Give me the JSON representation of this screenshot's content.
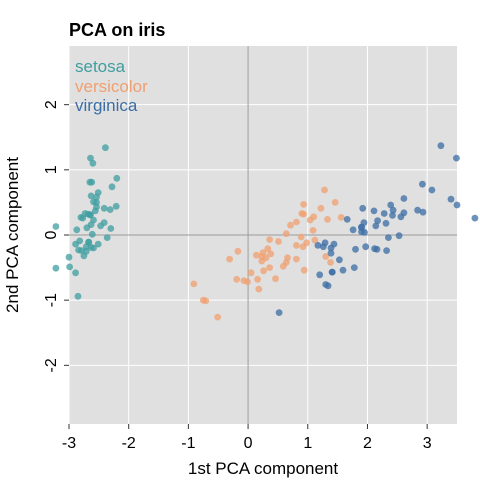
{
  "chart_data": {
    "type": "scatter",
    "title": "PCA on iris",
    "xlabel": "1st PCA component",
    "ylabel": "2nd PCA component",
    "xlim": [
      -3,
      3.5
    ],
    "ylim": [
      -2.9,
      2.9
    ],
    "x_ticks": [
      -3,
      -2,
      -1,
      0,
      1,
      2,
      3
    ],
    "y_ticks": [
      -2,
      -1,
      0,
      1,
      2
    ],
    "grid": true,
    "zero_lines": true,
    "legend_position": "top-left",
    "series": [
      {
        "name": "setosa",
        "color": "#3f9ea0",
        "points": [
          [
            -2.68,
            0.32
          ],
          [
            -2.71,
            -0.18
          ],
          [
            -2.89,
            -0.14
          ],
          [
            -2.75,
            -0.32
          ],
          [
            -2.73,
            0.33
          ],
          [
            -2.28,
            0.74
          ],
          [
            -2.82,
            -0.09
          ],
          [
            -2.63,
            0.16
          ],
          [
            -2.89,
            -0.58
          ],
          [
            -2.67,
            -0.11
          ],
          [
            -2.51,
            0.65
          ],
          [
            -2.61,
            0.01
          ],
          [
            -2.79,
            -0.24
          ],
          [
            -3.22,
            -0.51
          ],
          [
            -2.64,
            1.18
          ],
          [
            -2.39,
            1.34
          ],
          [
            -2.62,
            0.81
          ],
          [
            -2.65,
            0.31
          ],
          [
            -2.2,
            0.87
          ],
          [
            -2.59,
            0.51
          ],
          [
            -2.31,
            0.39
          ],
          [
            -2.54,
            0.43
          ],
          [
            -3.22,
            0.13
          ],
          [
            -2.3,
            0.1
          ],
          [
            -2.36,
            -0.04
          ],
          [
            -2.51,
            -0.14
          ],
          [
            -2.47,
            0.14
          ],
          [
            -2.56,
            0.37
          ],
          [
            -2.64,
            0.31
          ],
          [
            -2.63,
            -0.19
          ],
          [
            -2.59,
            -0.2
          ],
          [
            -2.41,
            0.41
          ],
          [
            -2.65,
            0.81
          ],
          [
            -2.6,
            1.1
          ],
          [
            -2.67,
            -0.11
          ],
          [
            -2.87,
            0.08
          ],
          [
            -2.63,
            0.6
          ],
          [
            -2.8,
            0.27
          ],
          [
            -2.99,
            -0.49
          ],
          [
            -2.59,
            0.23
          ],
          [
            -2.77,
            0.26
          ],
          [
            -2.85,
            -0.94
          ],
          [
            -3,
            -0.34
          ],
          [
            -2.41,
            0.19
          ],
          [
            -2.21,
            0.44
          ],
          [
            -2.71,
            -0.25
          ],
          [
            -2.54,
            0.5
          ],
          [
            -2.84,
            -0.23
          ],
          [
            -2.54,
            0.58
          ],
          [
            -2.7,
            0.11
          ]
        ]
      },
      {
        "name": "versicolor",
        "color": "#f0a070",
        "points": [
          [
            1.28,
            0.69
          ],
          [
            0.93,
            0.32
          ],
          [
            1.46,
            0.5
          ],
          [
            0.18,
            -0.83
          ],
          [
            1.09,
            0.07
          ],
          [
            0.64,
            -0.42
          ],
          [
            1.1,
            0.28
          ],
          [
            -0.75,
            -1
          ],
          [
            1.04,
            0.23
          ],
          [
            -0.01,
            -0.72
          ],
          [
            -0.51,
            -1.26
          ],
          [
            0.51,
            -0.1
          ],
          [
            0.26,
            -0.55
          ],
          [
            0.98,
            -0.12
          ],
          [
            -0.17,
            -0.25
          ],
          [
            0.93,
            0.47
          ],
          [
            0.66,
            -0.35
          ],
          [
            0.23,
            -0.33
          ],
          [
            0.94,
            -0.54
          ],
          [
            0.05,
            -0.58
          ],
          [
            1.12,
            -0.08
          ],
          [
            0.36,
            -0.07
          ],
          [
            1.3,
            -0.33
          ],
          [
            0.92,
            -0.18
          ],
          [
            0.71,
            0.15
          ],
          [
            0.9,
            0.33
          ],
          [
            1.33,
            0.24
          ],
          [
            1.56,
            0.27
          ],
          [
            0.81,
            -0.16
          ],
          [
            -0.31,
            -0.37
          ],
          [
            -0.07,
            -0.7
          ],
          [
            -0.19,
            -0.68
          ],
          [
            0.14,
            -0.31
          ],
          [
            1.38,
            -0.42
          ],
          [
            0.59,
            -0.48
          ],
          [
            0.81,
            0.2
          ],
          [
            1.22,
            0.41
          ],
          [
            0.81,
            -0.37
          ],
          [
            0.25,
            -0.27
          ],
          [
            0.16,
            -0.68
          ],
          [
            0.46,
            -0.67
          ],
          [
            0.89,
            -0.03
          ],
          [
            0.23,
            -0.4
          ],
          [
            -0.71,
            -1.01
          ],
          [
            0.36,
            -0.5
          ],
          [
            0.33,
            -0.21
          ],
          [
            0.38,
            -0.29
          ],
          [
            0.64,
            0.02
          ],
          [
            -0.91,
            -0.75
          ],
          [
            0.3,
            -0.35
          ]
        ]
      },
      {
        "name": "virginica",
        "color": "#3b6ea5",
        "points": [
          [
            2.53,
            -0.01
          ],
          [
            1.41,
            -0.57
          ],
          [
            2.61,
            0.34
          ],
          [
            1.97,
            -0.18
          ],
          [
            2.35,
            -0.04
          ],
          [
            3.4,
            0.55
          ],
          [
            0.52,
            -1.19
          ],
          [
            2.93,
            0.35
          ],
          [
            2.32,
            -0.24
          ],
          [
            2.92,
            0.78
          ],
          [
            1.66,
            0.24
          ],
          [
            1.8,
            -0.22
          ],
          [
            2.17,
            0.22
          ],
          [
            1.34,
            -0.78
          ],
          [
            1.59,
            -0.54
          ],
          [
            1.9,
            0.12
          ],
          [
            1.95,
            0.04
          ],
          [
            3.49,
            1.18
          ],
          [
            3.8,
            0.26
          ],
          [
            1.3,
            -0.76
          ],
          [
            2.43,
            0.38
          ],
          [
            1.2,
            -0.61
          ],
          [
            3.5,
            0.46
          ],
          [
            1.39,
            -0.2
          ],
          [
            2.28,
            0.33
          ],
          [
            2.61,
            0.56
          ],
          [
            1.26,
            -0.18
          ],
          [
            1.29,
            -0.12
          ],
          [
            2.12,
            -0.21
          ],
          [
            2.39,
            0.46
          ],
          [
            2.84,
            0.38
          ],
          [
            3.23,
            1.37
          ],
          [
            2.16,
            -0.22
          ],
          [
            1.44,
            -0.14
          ],
          [
            1.78,
            -0.5
          ],
          [
            3.08,
            0.69
          ],
          [
            2.14,
            0.14
          ],
          [
            1.9,
            0.05
          ],
          [
            1.17,
            -0.16
          ],
          [
            2.11,
            0.37
          ],
          [
            2.31,
            0.18
          ],
          [
            1.92,
            0.41
          ],
          [
            1.41,
            -0.57
          ],
          [
            2.56,
            0.28
          ],
          [
            2.42,
            0.3
          ],
          [
            1.94,
            0.19
          ],
          [
            1.53,
            -0.38
          ],
          [
            1.76,
            0.08
          ],
          [
            1.9,
            0.12
          ],
          [
            1.39,
            -0.28
          ]
        ]
      }
    ]
  }
}
